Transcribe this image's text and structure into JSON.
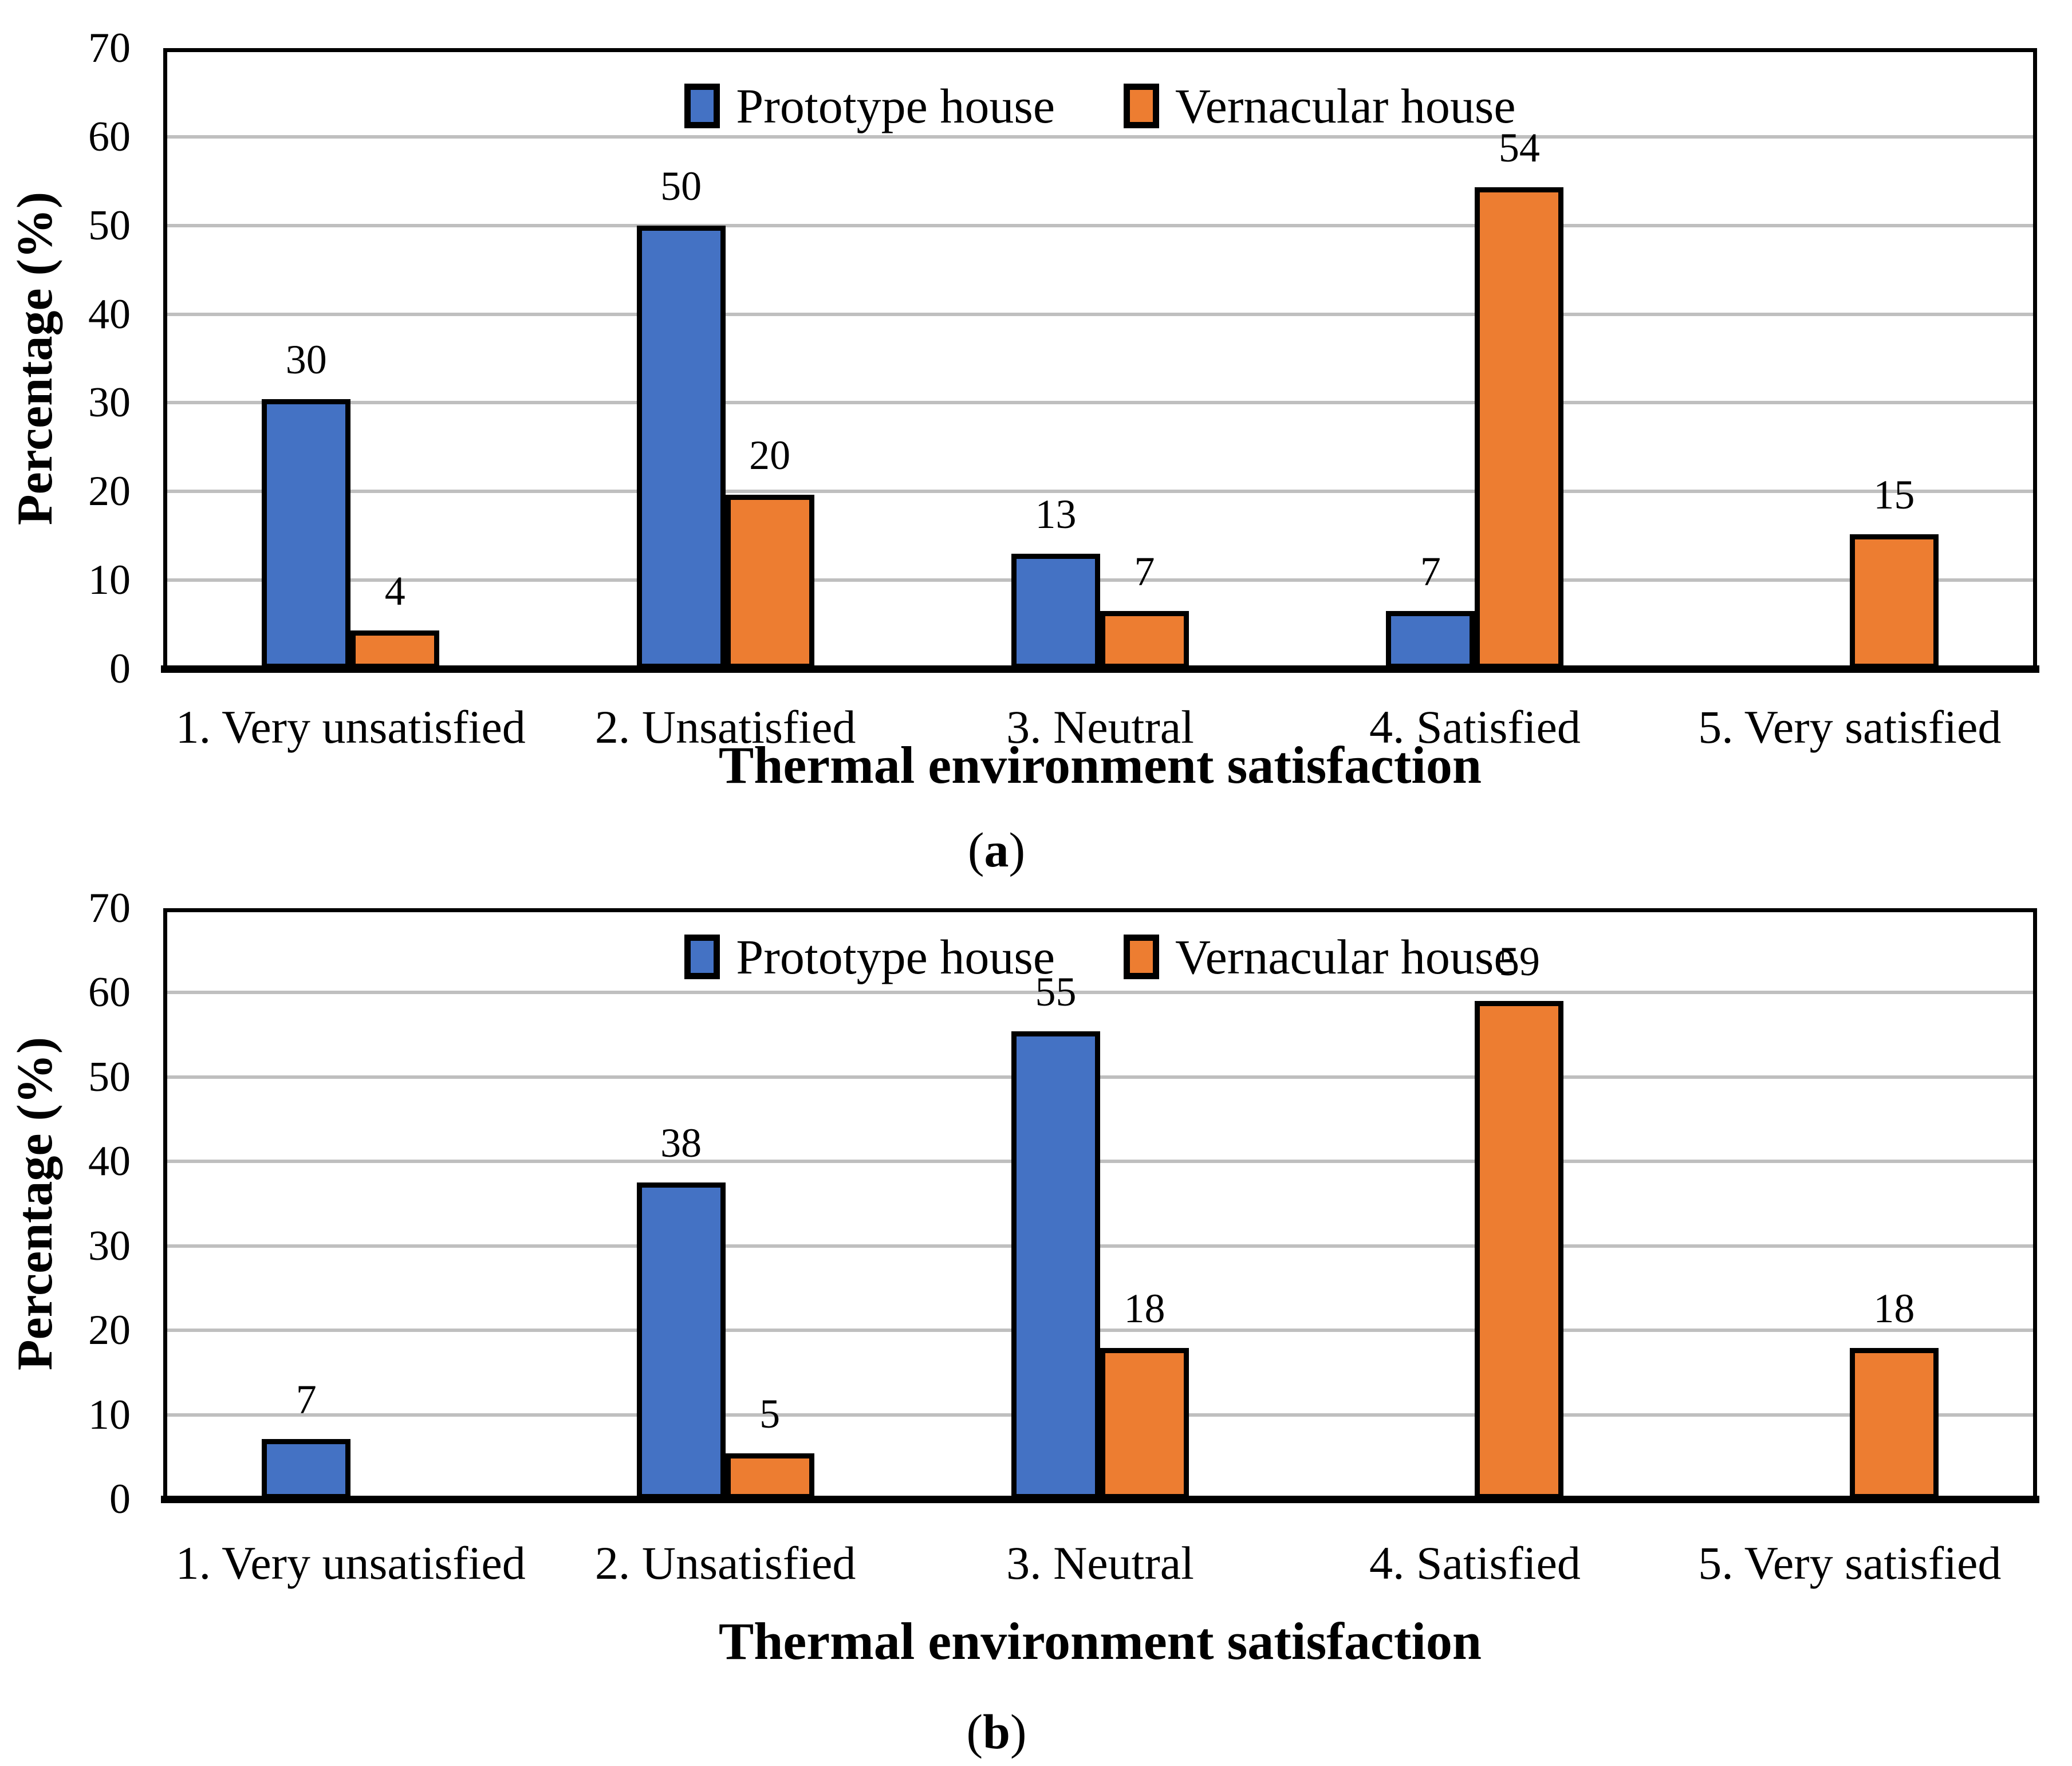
{
  "page": {
    "background": "#ffffff"
  },
  "colors": {
    "prototype_blue": "#4472C4",
    "vernacular_orange": "#ED7D31",
    "gridline_gray": "#BFBFBF",
    "axis_black": "#000000",
    "bar_outline": "#000000"
  },
  "chart_data": [
    {
      "id": "a",
      "type": "bar",
      "title": "",
      "xlabel": "Thermal environment satisfaction",
      "ylabel": "Percentage (%)",
      "ylim": [
        0,
        70
      ],
      "yticks": [
        0,
        10,
        20,
        30,
        40,
        50,
        60,
        70
      ],
      "grid": true,
      "legend_position": "top-center",
      "caption": {
        "open": "(",
        "letter": "a",
        "close": ")"
      },
      "categories": [
        "1. Very unsatisfied",
        "2. Unsatisfied",
        "3. Neutral",
        "4. Satisfied",
        "5. Very satisfied"
      ],
      "series": [
        {
          "name": "Prototype house",
          "color": "#4472C4",
          "values": [
            30.4,
            50,
            13,
            6.5,
            0
          ],
          "labels": [
            "30",
            "50",
            "13",
            "7",
            ""
          ]
        },
        {
          "name": "Vernacular house",
          "color": "#ED7D31",
          "values": [
            4.3,
            19.6,
            6.5,
            54.3,
            15.2
          ],
          "labels": [
            "4",
            "20",
            "7",
            "54",
            "15"
          ]
        }
      ]
    },
    {
      "id": "b",
      "type": "bar",
      "title": "",
      "xlabel": "Thermal environment satisfaction",
      "ylabel": "Percentage (%)",
      "ylim": [
        0,
        70
      ],
      "yticks": [
        0,
        10,
        20,
        30,
        40,
        50,
        60,
        70
      ],
      "grid": true,
      "legend_position": "top-center",
      "caption": {
        "open": "(",
        "letter": "b",
        "close": ")"
      },
      "categories": [
        "1. Very unsatisfied",
        "2. Unsatisfied",
        "3. Neutral",
        "4. Satisfied",
        "5. Very satisfied"
      ],
      "series": [
        {
          "name": "Prototype house",
          "color": "#4472C4",
          "values": [
            7.1,
            37.5,
            55.4,
            0,
            0
          ],
          "labels": [
            "7",
            "38",
            "55",
            "",
            ""
          ]
        },
        {
          "name": "Vernacular house",
          "color": "#ED7D31",
          "values": [
            0,
            5.4,
            17.9,
            59,
            17.9
          ],
          "labels": [
            "",
            "5",
            "18",
            "59",
            "18"
          ]
        }
      ]
    }
  ]
}
